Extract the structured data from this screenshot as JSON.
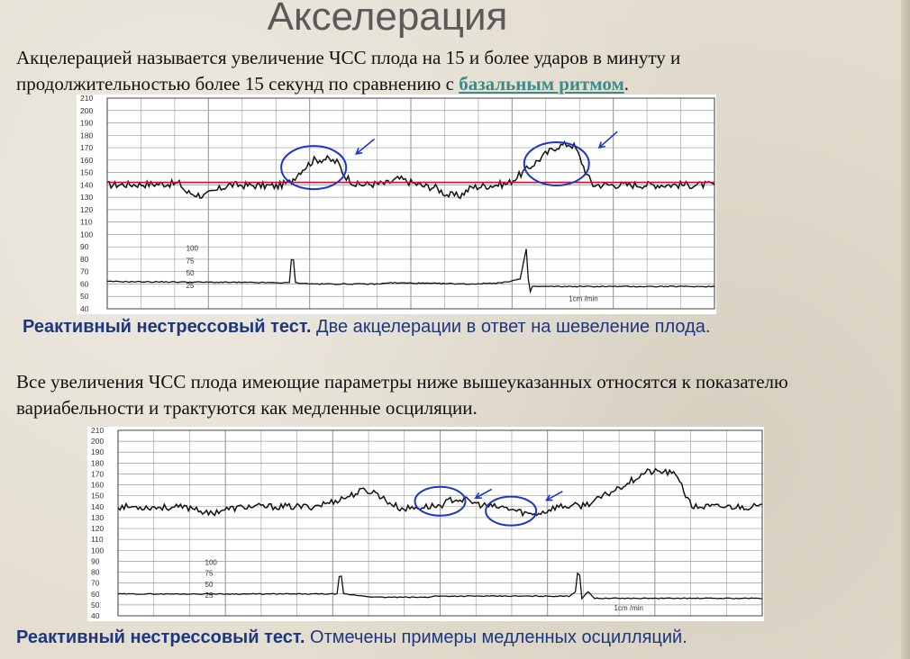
{
  "slide": {
    "title": "Акселерация",
    "intro_before": "Акцелерацией называется увеличение ЧСС плода на 15 и более ударов в минуту и продолжительностью более 15 секунд по сравнению с ",
    "intro_link": "базальным ритмом",
    "intro_after": ".",
    "caption1_bold": "Реактивный нестрессовый тест.",
    "caption1_text": " Две акцелерации в ответ на шевеление плода.",
    "body2": "Все увеличения ЧСС плода имеющие параметры ниже вышеуказанных относятся к показателю вариабельности и трактуются как медленные осциляции.",
    "caption2_bold": "Реактивный нестрессовый тест.",
    "caption2_text": " Отмечены примеры медленных осцилляций."
  },
  "colors": {
    "title": "#5a5a5a",
    "caption": "#1d3680",
    "link": "#3c8a8a",
    "baseline": "#c8102e",
    "annotation": "#1a35c9",
    "trace": "#111111",
    "grid": "#9a9a9a"
  },
  "ctg_common": {
    "fhr_ticks": [
      "210",
      "200",
      "190",
      "180",
      "170",
      "160",
      "150",
      "140",
      "130",
      "120",
      "110",
      "100",
      "90",
      "80",
      "70",
      "60",
      "50",
      "40"
    ],
    "toco_scale": [
      "100",
      "75",
      "50",
      "25"
    ],
    "speed_label": "1cm /min"
  },
  "chart_data": [
    {
      "type": "line",
      "name": "ctg-1",
      "ylim": [
        40,
        210
      ],
      "fhr_segments": [
        [
          0,
          140
        ],
        [
          0.12,
          141
        ],
        [
          0.13,
          134
        ],
        [
          0.16,
          131
        ],
        [
          0.2,
          140
        ],
        [
          0.28,
          139
        ],
        [
          0.3,
          142
        ],
        [
          0.32,
          152
        ],
        [
          0.34,
          160
        ],
        [
          0.36,
          161
        ],
        [
          0.38,
          158
        ],
        [
          0.39,
          148
        ],
        [
          0.41,
          140
        ],
        [
          0.46,
          141
        ],
        [
          0.48,
          145
        ],
        [
          0.5,
          142
        ],
        [
          0.52,
          139
        ],
        [
          0.54,
          138
        ],
        [
          0.56,
          132
        ],
        [
          0.58,
          131
        ],
        [
          0.6,
          138
        ],
        [
          0.66,
          141
        ],
        [
          0.69,
          152
        ],
        [
          0.72,
          164
        ],
        [
          0.74,
          171
        ],
        [
          0.76,
          173
        ],
        [
          0.77,
          171
        ],
        [
          0.78,
          160
        ],
        [
          0.79,
          148
        ],
        [
          0.8,
          140
        ],
        [
          1,
          140
        ]
      ],
      "baseline": 142,
      "toco": [
        [
          0,
          62
        ],
        [
          0.3,
          61
        ],
        [
          0.305,
          89
        ],
        [
          0.31,
          61
        ],
        [
          0.34,
          60
        ],
        [
          0.45,
          60
        ],
        [
          0.46,
          61
        ],
        [
          0.6,
          60
        ],
        [
          0.65,
          61
        ],
        [
          0.68,
          64
        ],
        [
          0.69,
          88
        ],
        [
          0.695,
          52
        ],
        [
          0.7,
          58
        ],
        [
          0.72,
          58
        ],
        [
          0.8,
          58
        ],
        [
          1,
          58
        ]
      ],
      "circles": [
        {
          "cx": 0.34,
          "cy": 154
        },
        {
          "cx": 0.74,
          "cy": 157
        }
      ],
      "arrows": [
        {
          "from_x": 0.44,
          "from_y": 177,
          "to_x": 0.41,
          "to_y": 165
        },
        {
          "from_x": 0.84,
          "from_y": 183,
          "to_x": 0.81,
          "to_y": 170
        }
      ]
    },
    {
      "type": "line",
      "name": "ctg-2",
      "ylim": [
        40,
        210
      ],
      "fhr_segments": [
        [
          0,
          140
        ],
        [
          0.12,
          139
        ],
        [
          0.14,
          133
        ],
        [
          0.16,
          137
        ],
        [
          0.2,
          140
        ],
        [
          0.3,
          140
        ],
        [
          0.33,
          144
        ],
        [
          0.36,
          150
        ],
        [
          0.38,
          155
        ],
        [
          0.4,
          153
        ],
        [
          0.42,
          144
        ],
        [
          0.44,
          138
        ],
        [
          0.48,
          140
        ],
        [
          0.5,
          141
        ],
        [
          0.52,
          147
        ],
        [
          0.54,
          146
        ],
        [
          0.56,
          142
        ],
        [
          0.58,
          140
        ],
        [
          0.6,
          139
        ],
        [
          0.62,
          136
        ],
        [
          0.64,
          133
        ],
        [
          0.66,
          135
        ],
        [
          0.68,
          140
        ],
        [
          0.72,
          141
        ],
        [
          0.74,
          145
        ],
        [
          0.77,
          155
        ],
        [
          0.8,
          165
        ],
        [
          0.82,
          172
        ],
        [
          0.85,
          172
        ],
        [
          0.87,
          168
        ],
        [
          0.88,
          152
        ],
        [
          0.89,
          140
        ],
        [
          1,
          140
        ]
      ],
      "toco": [
        [
          0,
          60
        ],
        [
          0.34,
          60
        ],
        [
          0.345,
          84
        ],
        [
          0.35,
          60
        ],
        [
          0.4,
          57
        ],
        [
          0.48,
          57
        ],
        [
          0.49,
          58
        ],
        [
          0.7,
          58
        ],
        [
          0.71,
          62
        ],
        [
          0.715,
          88
        ],
        [
          0.72,
          56
        ],
        [
          0.73,
          62
        ],
        [
          0.74,
          56
        ],
        [
          0.8,
          56
        ],
        [
          1,
          56
        ]
      ],
      "circles": [
        {
          "cx": 0.5,
          "cy": 145
        },
        {
          "cx": 0.61,
          "cy": 136
        }
      ],
      "arrows": [
        {
          "from_x": 0.58,
          "from_y": 156,
          "to_x": 0.555,
          "to_y": 148
        },
        {
          "from_x": 0.69,
          "from_y": 154,
          "to_x": 0.665,
          "to_y": 146
        }
      ]
    }
  ]
}
